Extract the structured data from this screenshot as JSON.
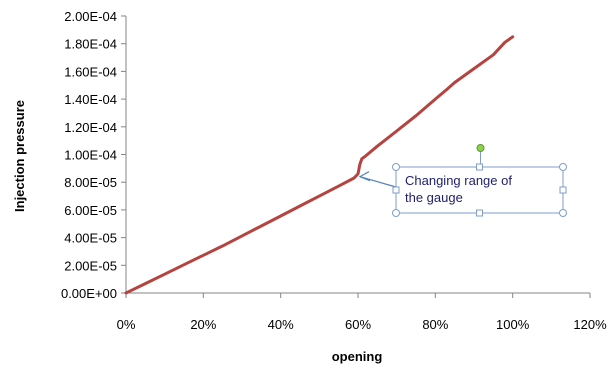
{
  "chart_data": {
    "type": "line",
    "xlabel": "opening",
    "ylabel": "Injection pressure",
    "xlim": [
      0,
      1.2
    ],
    "ylim": [
      0,
      0.0002
    ],
    "x_ticks": [
      "0%",
      "20%",
      "40%",
      "60%",
      "80%",
      "100%",
      "120%"
    ],
    "y_ticks": [
      "0.00E+00",
      "2.00E-05",
      "4.00E-05",
      "6.00E-05",
      "8.00E-05",
      "1.00E-04",
      "1.20E-04",
      "1.40E-04",
      "1.60E-04",
      "1.80E-04",
      "2.00E-04"
    ],
    "grid": "none",
    "legend": "none",
    "series": [
      {
        "color": "#b5433f",
        "x": [
          0.0,
          0.05,
          0.1,
          0.15,
          0.2,
          0.25,
          0.3,
          0.35,
          0.4,
          0.45,
          0.5,
          0.55,
          0.59,
          0.6,
          0.605,
          0.61,
          0.62,
          0.65,
          0.7,
          0.75,
          0.8,
          0.83,
          0.85,
          0.9,
          0.95,
          0.98,
          1.0
        ],
        "y": [
          0.0,
          6.8e-06,
          1.36e-05,
          2.04e-05,
          2.72e-05,
          3.4e-05,
          4.12e-05,
          4.84e-05,
          5.56e-05,
          6.28e-05,
          7e-05,
          7.72e-05,
          8.3e-05,
          8.6e-05,
          9.3e-05,
          9.7e-05,
          9.9e-05,
          0.000106,
          0.000117,
          0.000128,
          0.00014,
          0.000147,
          0.000152,
          0.000162,
          0.000172,
          0.000181,
          0.000185
        ]
      }
    ],
    "annotation": {
      "text_lines": [
        "Changing range of",
        "the gauge"
      ],
      "arrow_target": [
        0.6,
        8.4e-05
      ]
    }
  }
}
